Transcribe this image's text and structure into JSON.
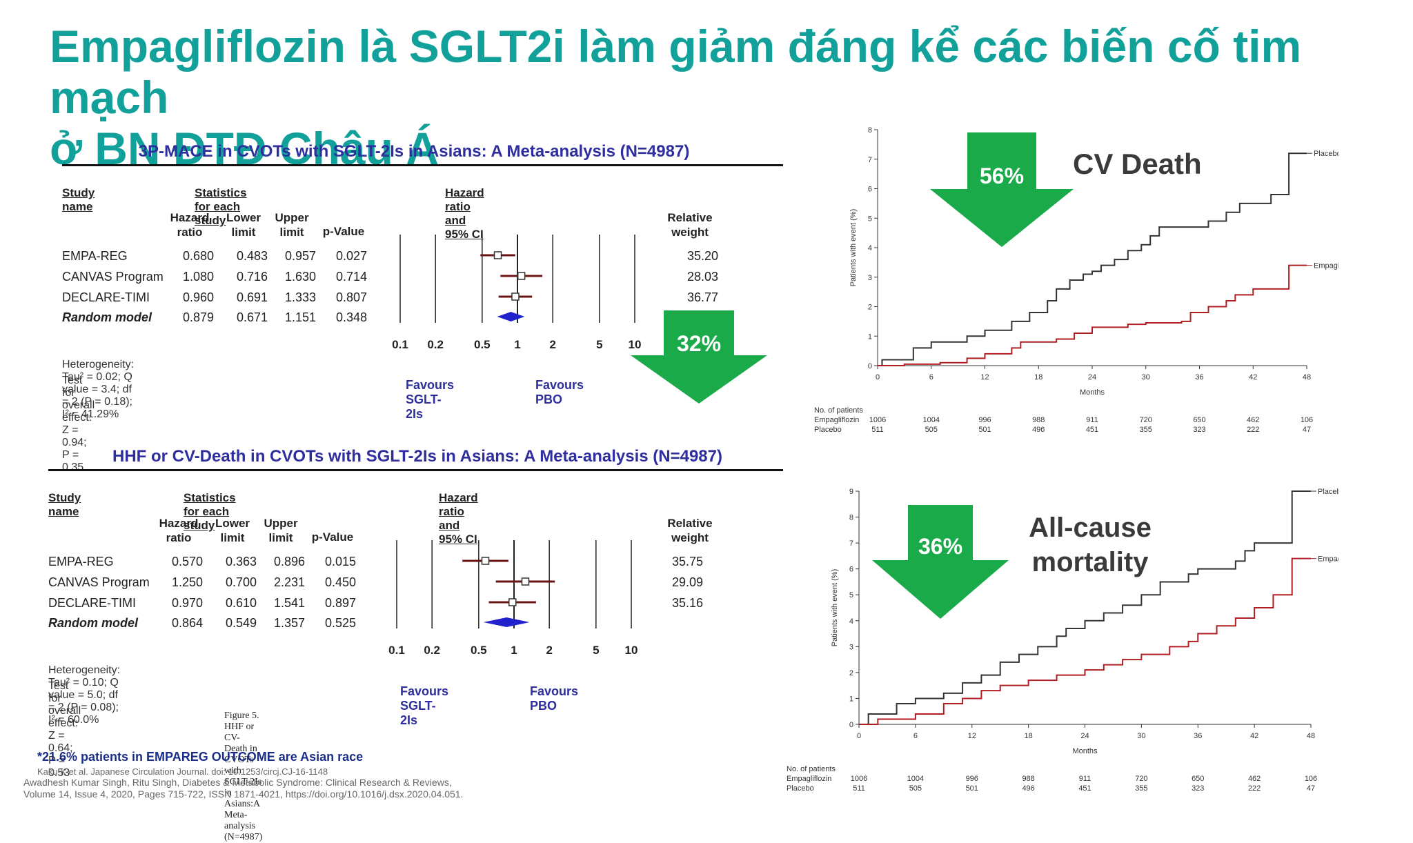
{
  "slide": {
    "title_line1": "Empagliflozin là SGLT2i làm giảm đáng kể các biến cố tim mạch",
    "title_line2": "ở BN ĐTĐ Châu Á"
  },
  "forest1": {
    "title": "3P-MACE in CVOTs with SGLT-2Is in Asians: A Meta-analysis (N=4987)",
    "study_header": "Study name",
    "stats_header": "Statistics for each study",
    "hr_header": "Hazard ratio and 95% CI",
    "col_hr": [
      "Hazard",
      "ratio"
    ],
    "col_lower": [
      "Lower",
      "limit"
    ],
    "col_upper": [
      "Upper",
      "limit"
    ],
    "col_p": "p-Value",
    "col_weight": [
      "Relative",
      "weight"
    ],
    "rows": [
      {
        "name": "EMPA-REG",
        "hr": "0.680",
        "lower": "0.483",
        "upper": "0.957",
        "p": "0.027",
        "weight": "35.20"
      },
      {
        "name": "CANVAS Program",
        "hr": "1.080",
        "lower": "0.716",
        "upper": "1.630",
        "p": "0.714",
        "weight": "28.03"
      },
      {
        "name": "DECLARE-TIMI",
        "hr": "0.960",
        "lower": "0.691",
        "upper": "1.333",
        "p": "0.807",
        "weight": "36.77"
      },
      {
        "name": "Random model",
        "hr": "0.879",
        "lower": "0.671",
        "upper": "1.151",
        "p": "0.348",
        "weight": ""
      }
    ],
    "axis_ticks": [
      "0.1",
      "0.2",
      "0.5",
      "1",
      "2",
      "5",
      "10"
    ],
    "heterogeneity": "Heterogeneity: Tau² = 0.02; Q value = 3.4; df = 2 (P = 0.18); I² = 41.29%",
    "overall": "Test for overall effect: Z = 0.94; P = 0.35",
    "favours_left": "Favours SGLT-2Is",
    "favours_right": "Favours PBO",
    "arrow_label": "32%"
  },
  "forest2": {
    "title": "HHF or CV-Death in CVOTs with SGLT-2Is in Asians: A Meta-analysis (N=4987)",
    "study_header": "Study name",
    "stats_header": "Statistics for each study",
    "hr_header": "Hazard ratio and 95% CI",
    "col_hr": [
      "Hazard",
      "ratio"
    ],
    "col_lower": [
      "Lower",
      "limit"
    ],
    "col_upper": [
      "Upper",
      "limit"
    ],
    "col_p": "p-Value",
    "col_weight": [
      "Relative",
      "weight"
    ],
    "rows": [
      {
        "name": "EMPA-REG",
        "hr": "0.570",
        "lower": "0.363",
        "upper": "0.896",
        "p": "0.015",
        "weight": "35.75"
      },
      {
        "name": "CANVAS Program",
        "hr": "1.250",
        "lower": "0.700",
        "upper": "2.231",
        "p": "0.450",
        "weight": "29.09"
      },
      {
        "name": "DECLARE-TIMI",
        "hr": "0.970",
        "lower": "0.610",
        "upper": "1.541",
        "p": "0.897",
        "weight": "35.16"
      },
      {
        "name": "Random model",
        "hr": "0.864",
        "lower": "0.549",
        "upper": "1.357",
        "p": "0.525",
        "weight": ""
      }
    ],
    "axis_ticks": [
      "0.1",
      "0.2",
      "0.5",
      "1",
      "2",
      "5",
      "10"
    ],
    "heterogeneity": "Heterogeneity: Tau² = 0.10; Q value = 5.0; df = 2 (P = 0.08); I² = 60.0%",
    "overall": "Test for overall effect: Z = 0.64; P = 0.53",
    "favours_left": "Favours SGLT-2Is",
    "favours_right": "Favours PBO",
    "figure_caption": "Figure 5.  HHF or CV-Death in CVOTs with SGLT-2Is in Asians:A Meta-analysis (N=4987)"
  },
  "km1": {
    "title": "CV Death",
    "arrow_label": "56%"
  },
  "km2": {
    "title_line1": "All-cause",
    "title_line2": "mortality",
    "arrow_label": "36%"
  },
  "footnotes": {
    "asian_note": "*21.6% patients in EMPAREG OUTCOME are Asian race",
    "kaku": "Kaku K et al. Japanese Circulation Journal. doi: 10.1253/circj.CJ-16-1148",
    "singh_line1": "Awadhesh Kumar Singh, Ritu Singh, Diabetes & Metabolic Syndrome: Clinical Research & Reviews,",
    "singh_line2": "Volume 14, Issue 4, 2020, Pages 715-722, ISSN 1871-4021, https://doi.org/10.1016/j.dsx.2020.04.051."
  },
  "colors": {
    "title_teal": "#12a19a",
    "arrow_green": "#1aaa4a",
    "navy": "#2e2e9e",
    "placebo": "#333333",
    "empagliflozin": "#b01e23",
    "forest_line": "#6b1414",
    "diamond": "#2222cc"
  },
  "chart_data": [
    {
      "type": "forest",
      "title": "3P-MACE in CVOTs with SGLT-2Is in Asians: A Meta-analysis (N=4987)",
      "scale": "log",
      "xlim": [
        0.1,
        10
      ],
      "x_ticks": [
        0.1,
        0.2,
        0.5,
        1,
        2,
        5,
        10
      ],
      "studies": [
        {
          "name": "EMPA-REG",
          "hr": 0.68,
          "lower": 0.483,
          "upper": 0.957,
          "weight": 35.2
        },
        {
          "name": "CANVAS Program",
          "hr": 1.08,
          "lower": 0.716,
          "upper": 1.63,
          "weight": 28.03
        },
        {
          "name": "DECLARE-TIMI",
          "hr": 0.96,
          "lower": 0.691,
          "upper": 1.333,
          "weight": 36.77
        }
      ],
      "pooled": {
        "name": "Random model",
        "hr": 0.879,
        "lower": 0.671,
        "upper": 1.151
      }
    },
    {
      "type": "forest",
      "title": "HHF or CV-Death in CVOTs with SGLT-2Is in Asians: A Meta-analysis (N=4987)",
      "scale": "log",
      "xlim": [
        0.1,
        10
      ],
      "x_ticks": [
        0.1,
        0.2,
        0.5,
        1,
        2,
        5,
        10
      ],
      "studies": [
        {
          "name": "EMPA-REG",
          "hr": 0.57,
          "lower": 0.363,
          "upper": 0.896,
          "weight": 35.75
        },
        {
          "name": "CANVAS Program",
          "hr": 1.25,
          "lower": 0.7,
          "upper": 2.231,
          "weight": 29.09
        },
        {
          "name": "DECLARE-TIMI",
          "hr": 0.97,
          "lower": 0.61,
          "upper": 1.541,
          "weight": 35.16
        }
      ],
      "pooled": {
        "name": "Random model",
        "hr": 0.864,
        "lower": 0.549,
        "upper": 1.357
      }
    },
    {
      "type": "line",
      "title": "CV Death",
      "xlabel": "Months",
      "ylabel": "Patients with event (%)",
      "xlim": [
        0,
        48
      ],
      "ylim": [
        0,
        8
      ],
      "x_ticks": [
        0,
        6,
        12,
        18,
        24,
        30,
        36,
        42,
        48
      ],
      "y_ticks": [
        0,
        1,
        2,
        3,
        4,
        5,
        6,
        7,
        8
      ],
      "series": [
        {
          "name": "Placebo",
          "x": [
            0,
            0.5,
            4,
            6,
            10,
            12,
            15,
            17,
            19,
            20,
            21.5,
            23,
            24,
            25,
            26.5,
            28,
            29.5,
            30.5,
            31.5,
            36,
            37,
            39,
            40.5,
            44,
            46,
            48
          ],
          "y": [
            0,
            0.2,
            0.6,
            0.8,
            1.0,
            1.2,
            1.5,
            1.8,
            2.2,
            2.6,
            2.9,
            3.1,
            3.2,
            3.4,
            3.6,
            3.9,
            4.1,
            4.4,
            4.7,
            4.7,
            4.9,
            5.2,
            5.5,
            5.8,
            7.2,
            7.2
          ]
        },
        {
          "name": "Empagliflozin",
          "x": [
            0,
            3,
            7,
            10,
            12,
            15,
            16,
            20,
            22,
            24,
            25,
            28,
            30,
            34,
            35,
            37,
            39,
            40,
            42,
            43,
            45,
            46,
            48
          ],
          "y": [
            0,
            0.05,
            0.1,
            0.25,
            0.4,
            0.6,
            0.8,
            0.9,
            1.1,
            1.3,
            1.3,
            1.4,
            1.45,
            1.5,
            1.8,
            2.0,
            2.2,
            2.4,
            2.6,
            2.6,
            2.6,
            3.4,
            3.4
          ]
        }
      ],
      "number_at_risk": {
        "label": "No. of patients",
        "months": [
          0,
          6,
          12,
          18,
          24,
          30,
          36,
          42,
          48
        ],
        "Empagliflozin": [
          1006,
          1004,
          996,
          988,
          911,
          720,
          650,
          462,
          106
        ],
        "Placebo": [
          511,
          505,
          501,
          496,
          451,
          355,
          323,
          222,
          47
        ]
      }
    },
    {
      "type": "line",
      "title": "All-cause mortality",
      "xlabel": "Months",
      "ylabel": "Patients with event (%)",
      "xlim": [
        0,
        48
      ],
      "ylim": [
        0,
        9
      ],
      "x_ticks": [
        0,
        6,
        12,
        18,
        24,
        30,
        36,
        42,
        48
      ],
      "y_ticks": [
        0,
        1,
        2,
        3,
        4,
        5,
        6,
        7,
        8,
        9
      ],
      "series": [
        {
          "name": "Placebo",
          "x": [
            0,
            1,
            4,
            6,
            9,
            11,
            13,
            15,
            17,
            19,
            21,
            22,
            24,
            26,
            28,
            30,
            32,
            35,
            36,
            38,
            40,
            41,
            42,
            44,
            46,
            48
          ],
          "y": [
            0,
            0.4,
            0.8,
            1.0,
            1.2,
            1.6,
            1.9,
            2.4,
            2.7,
            3.0,
            3.4,
            3.7,
            4.0,
            4.3,
            4.6,
            5.0,
            5.5,
            5.8,
            6.0,
            6.0,
            6.3,
            6.7,
            7.0,
            7.0,
            9.0,
            9.0
          ]
        },
        {
          "name": "Empagliflozin",
          "x": [
            0,
            2,
            6,
            9,
            11,
            13,
            15,
            18,
            21,
            24,
            26,
            28,
            30,
            33,
            35,
            36,
            38,
            40,
            42,
            44,
            46,
            48
          ],
          "y": [
            0,
            0.2,
            0.4,
            0.8,
            1.0,
            1.3,
            1.5,
            1.7,
            1.9,
            2.1,
            2.3,
            2.5,
            2.7,
            3.0,
            3.2,
            3.5,
            3.8,
            4.1,
            4.5,
            5.0,
            6.4,
            6.4
          ]
        }
      ],
      "number_at_risk": {
        "label": "No. of patients",
        "months": [
          0,
          6,
          12,
          18,
          24,
          30,
          36,
          42,
          48
        ],
        "Empagliflozin": [
          1006,
          1004,
          996,
          988,
          911,
          720,
          650,
          462,
          106
        ],
        "Placebo": [
          511,
          505,
          501,
          496,
          451,
          355,
          323,
          222,
          47
        ]
      }
    }
  ]
}
